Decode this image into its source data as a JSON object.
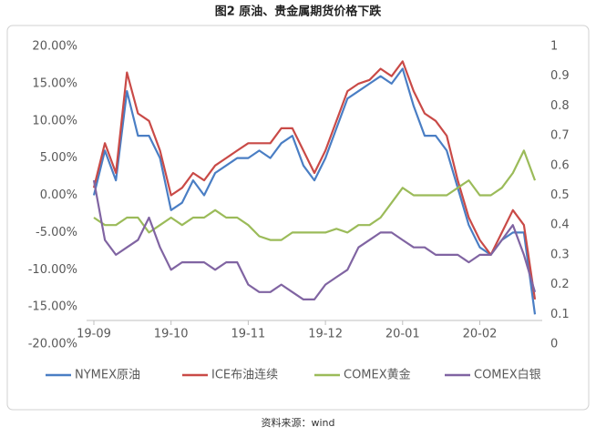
{
  "chart_data": {
    "type": "line",
    "title": "图2 原油、贵金属期货价格下跌",
    "source": "资料来源：wind",
    "categories": [
      "19-09",
      null,
      null,
      null,
      null,
      null,
      null,
      "19-10",
      null,
      null,
      null,
      null,
      null,
      null,
      "19-11",
      null,
      null,
      null,
      null,
      null,
      null,
      "19-12",
      null,
      null,
      null,
      null,
      null,
      null,
      "20-01",
      null,
      null,
      null,
      null,
      null,
      null,
      "20-02",
      null,
      null,
      null,
      null,
      null
    ],
    "series": [
      {
        "name": "NYMEX原油",
        "color": "#4a7ec4",
        "values": [
          0,
          6,
          2,
          14,
          8,
          8,
          5,
          -2,
          -1,
          2,
          0,
          3,
          4,
          5,
          5,
          6,
          5,
          7,
          8,
          4,
          2,
          5,
          9,
          13,
          14,
          15,
          16,
          15,
          17,
          12,
          8,
          8,
          6,
          1,
          -4,
          -7,
          -8,
          -6,
          -5,
          -5,
          -16
        ]
      },
      {
        "name": "ICE布油连续",
        "color": "#c94a47",
        "values": [
          1,
          7,
          3,
          16.5,
          11,
          10,
          6,
          0,
          1,
          3,
          2,
          4,
          5,
          6,
          7,
          7,
          7,
          9,
          9,
          6,
          3,
          6,
          10,
          14,
          15,
          15.5,
          17,
          16,
          18,
          14,
          11,
          10,
          8,
          2,
          -3,
          -6,
          -8,
          -5,
          -2,
          -4,
          -14
        ]
      },
      {
        "name": "COMEX黄金",
        "color": "#9bbb59",
        "values": [
          -3,
          -4,
          -4,
          -3,
          -3,
          -5,
          -4,
          -3,
          -4,
          -3,
          -3,
          -2,
          -3,
          -3,
          -4,
          -5.5,
          -6,
          -6,
          -5,
          -5,
          -5,
          -5,
          -4.5,
          -5,
          -4,
          -4,
          -3,
          -1,
          1,
          0,
          0,
          0,
          0,
          1,
          2,
          0,
          0,
          1,
          3,
          6,
          2
        ]
      },
      {
        "name": "COMEX白银",
        "color": "#8064a2",
        "values": [
          2,
          -6,
          -8,
          -7,
          -6,
          -3,
          -7,
          -10,
          -9,
          -9,
          -9,
          -10,
          -9,
          -9,
          -12,
          -13,
          -13,
          -12,
          -13,
          -14,
          -14,
          -12,
          -11,
          -10,
          -7,
          -6,
          -5,
          -5,
          -6,
          -7,
          -7,
          -8,
          -8,
          -8,
          -9,
          -8,
          -8,
          -6,
          -4,
          -8,
          -13
        ]
      }
    ],
    "ylim": [
      -20,
      20
    ],
    "yticks": [
      {
        "value": -20,
        "label": "-20.00%"
      },
      {
        "value": -15,
        "label": "-15.00%"
      },
      {
        "value": -10,
        "label": "-10.00%"
      },
      {
        "value": -5,
        "label": "-5.00%"
      },
      {
        "value": 0,
        "label": "0.00%"
      },
      {
        "value": 5,
        "label": "5.00%"
      },
      {
        "value": 10,
        "label": "10.00%"
      },
      {
        "value": 15,
        "label": "15.00%"
      },
      {
        "value": 20,
        "label": "20.00%"
      }
    ],
    "y2lim": [
      0,
      1
    ],
    "y2ticks": [
      0,
      0.1,
      0.2,
      0.3,
      0.4,
      0.5,
      0.6,
      0.7,
      0.8,
      0.9,
      1
    ],
    "grid": false,
    "legend": "bottom"
  }
}
